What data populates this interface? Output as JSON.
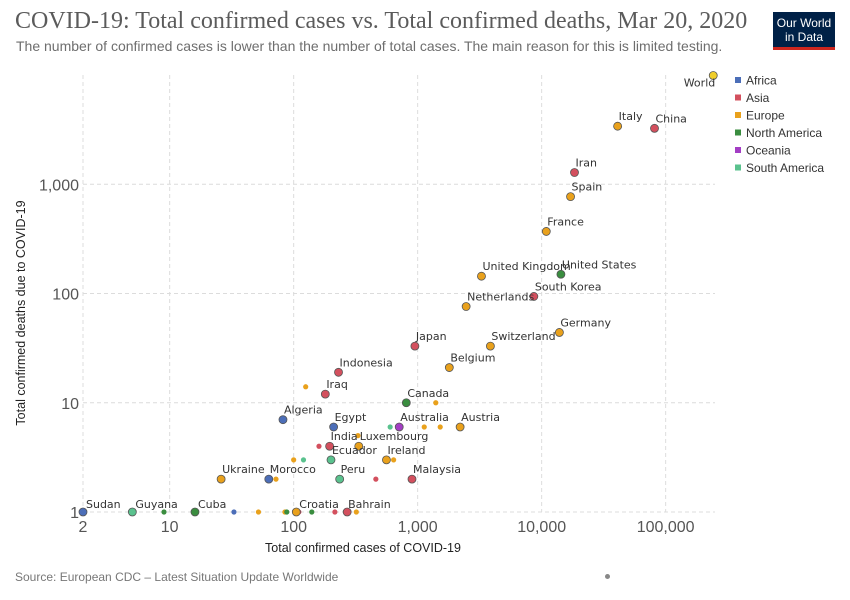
{
  "header": {
    "title": "COVID-19: Total confirmed cases vs. Total confirmed deaths, Mar 20, 2020",
    "subtitle": "The number of confirmed cases is lower than the number of total cases. The main reason for this is limited testing.",
    "logo": "Our World\nin Data",
    "logo_bg": "#002147",
    "logo_accent": "#ce261e"
  },
  "footer": {
    "source": "Source: European CDC – Latest Situation Update Worldwide"
  },
  "chart_data": {
    "type": "scatter",
    "title": "COVID-19: Total confirmed cases vs. Total confirmed deaths, Mar 20, 2020",
    "xlabel": "Total confirmed cases of COVID-19",
    "ylabel": "Total confirmed deaths due to COVID-19",
    "xscale": "log",
    "yscale": "log",
    "xlim": [
      2,
      250000
    ],
    "ylim": [
      1,
      10000
    ],
    "xticks": [
      {
        "v": 2,
        "label": "2"
      },
      {
        "v": 10,
        "label": "10"
      },
      {
        "v": 100,
        "label": "100"
      },
      {
        "v": 1000,
        "label": "1,000"
      },
      {
        "v": 10000,
        "label": "10,000"
      },
      {
        "v": 100000,
        "label": "100,000"
      }
    ],
    "yticks": [
      {
        "v": 1,
        "label": "1"
      },
      {
        "v": 10,
        "label": "10"
      },
      {
        "v": 100,
        "label": "100"
      },
      {
        "v": 1000,
        "label": "1,000"
      }
    ],
    "grid": true,
    "legend_position": "top-right",
    "colors": {
      "Africa": "#4c6eb8",
      "Asia": "#d3505e",
      "Europe": "#e9a11c",
      "North America": "#3a8d3f",
      "Oceania": "#a33ec4",
      "South America": "#5ac28e"
    },
    "legend": [
      "Africa",
      "Asia",
      "Europe",
      "North America",
      "Oceania",
      "South America"
    ],
    "points": [
      {
        "label": "World",
        "x": 242000,
        "y": 9900,
        "group": "Europe",
        "highlight": "#f0ce2a"
      },
      {
        "label": "Italy",
        "x": 41000,
        "y": 3400,
        "group": "Europe"
      },
      {
        "label": "China",
        "x": 81300,
        "y": 3250,
        "group": "Asia"
      },
      {
        "label": "Iran",
        "x": 18400,
        "y": 1280,
        "group": "Asia"
      },
      {
        "label": "Spain",
        "x": 17100,
        "y": 770,
        "group": "Europe"
      },
      {
        "label": "France",
        "x": 10900,
        "y": 370,
        "group": "Europe"
      },
      {
        "label": "United Kingdom",
        "x": 3270,
        "y": 144,
        "group": "Europe"
      },
      {
        "label": "United States",
        "x": 14300,
        "y": 150,
        "group": "North America"
      },
      {
        "label": "South Korea",
        "x": 8650,
        "y": 94,
        "group": "Asia"
      },
      {
        "label": "Netherlands",
        "x": 2460,
        "y": 76,
        "group": "Europe"
      },
      {
        "label": "Germany",
        "x": 13900,
        "y": 44,
        "group": "Europe"
      },
      {
        "label": "Japan",
        "x": 950,
        "y": 33,
        "group": "Asia"
      },
      {
        "label": "Switzerland",
        "x": 3860,
        "y": 33,
        "group": "Europe"
      },
      {
        "label": "Belgium",
        "x": 1800,
        "y": 21,
        "group": "Europe"
      },
      {
        "label": "Indonesia",
        "x": 230,
        "y": 19,
        "group": "Asia"
      },
      {
        "label": "Iraq",
        "x": 180,
        "y": 12,
        "group": "Asia"
      },
      {
        "label": "Canada",
        "x": 810,
        "y": 10,
        "group": "North America"
      },
      {
        "label": "Algeria",
        "x": 82,
        "y": 7,
        "group": "Africa"
      },
      {
        "label": "Egypt",
        "x": 210,
        "y": 6,
        "group": "Africa"
      },
      {
        "label": "Australia",
        "x": 710,
        "y": 6,
        "group": "Oceania"
      },
      {
        "label": "Austria",
        "x": 2200,
        "y": 6,
        "group": "Europe"
      },
      {
        "label": "India",
        "x": 195,
        "y": 4,
        "group": "Asia"
      },
      {
        "label": "Luxembourg",
        "x": 335,
        "y": 4,
        "group": "Europe"
      },
      {
        "label": "Ecuador",
        "x": 200,
        "y": 3,
        "group": "South America"
      },
      {
        "label": "Ireland",
        "x": 560,
        "y": 3,
        "group": "Europe"
      },
      {
        "label": "Ukraine",
        "x": 26,
        "y": 2,
        "group": "Europe"
      },
      {
        "label": "Morocco",
        "x": 63,
        "y": 2,
        "group": "Africa"
      },
      {
        "label": "Peru",
        "x": 235,
        "y": 2,
        "group": "South America"
      },
      {
        "label": "Malaysia",
        "x": 900,
        "y": 2,
        "group": "Asia"
      },
      {
        "label": "Sudan",
        "x": 2,
        "y": 1,
        "group": "Africa"
      },
      {
        "label": "Guyana",
        "x": 5,
        "y": 1,
        "group": "South America"
      },
      {
        "label": "Cuba",
        "x": 16,
        "y": 1,
        "group": "North America"
      },
      {
        "label": "Croatia",
        "x": 105,
        "y": 1,
        "group": "Europe"
      },
      {
        "label": "Bahrain",
        "x": 270,
        "y": 1,
        "group": "Asia"
      }
    ],
    "minor_points": [
      {
        "x": 125,
        "y": 14,
        "group": "Europe"
      },
      {
        "x": 100,
        "y": 3,
        "group": "Europe"
      },
      {
        "x": 120,
        "y": 3,
        "group": "South America"
      },
      {
        "x": 72,
        "y": 2,
        "group": "Europe"
      },
      {
        "x": 160,
        "y": 4,
        "group": "Asia"
      },
      {
        "x": 330,
        "y": 5,
        "group": "Europe"
      },
      {
        "x": 600,
        "y": 6,
        "group": "South America"
      },
      {
        "x": 1130,
        "y": 6,
        "group": "Europe"
      },
      {
        "x": 1520,
        "y": 6,
        "group": "Europe"
      },
      {
        "x": 1400,
        "y": 10,
        "group": "Europe"
      },
      {
        "x": 640,
        "y": 3,
        "group": "Europe"
      },
      {
        "x": 460,
        "y": 2,
        "group": "Asia"
      },
      {
        "x": 9,
        "y": 1,
        "group": "North America"
      },
      {
        "x": 33,
        "y": 1,
        "group": "Africa"
      },
      {
        "x": 52,
        "y": 1,
        "group": "Europe"
      },
      {
        "x": 85,
        "y": 1,
        "group": "Europe"
      },
      {
        "x": 88,
        "y": 1,
        "group": "North America"
      },
      {
        "x": 110,
        "y": 1,
        "group": "Asia"
      },
      {
        "x": 140,
        "y": 1,
        "group": "North America"
      },
      {
        "x": 215,
        "y": 1,
        "group": "Asia"
      },
      {
        "x": 320,
        "y": 1,
        "group": "Europe"
      }
    ]
  }
}
